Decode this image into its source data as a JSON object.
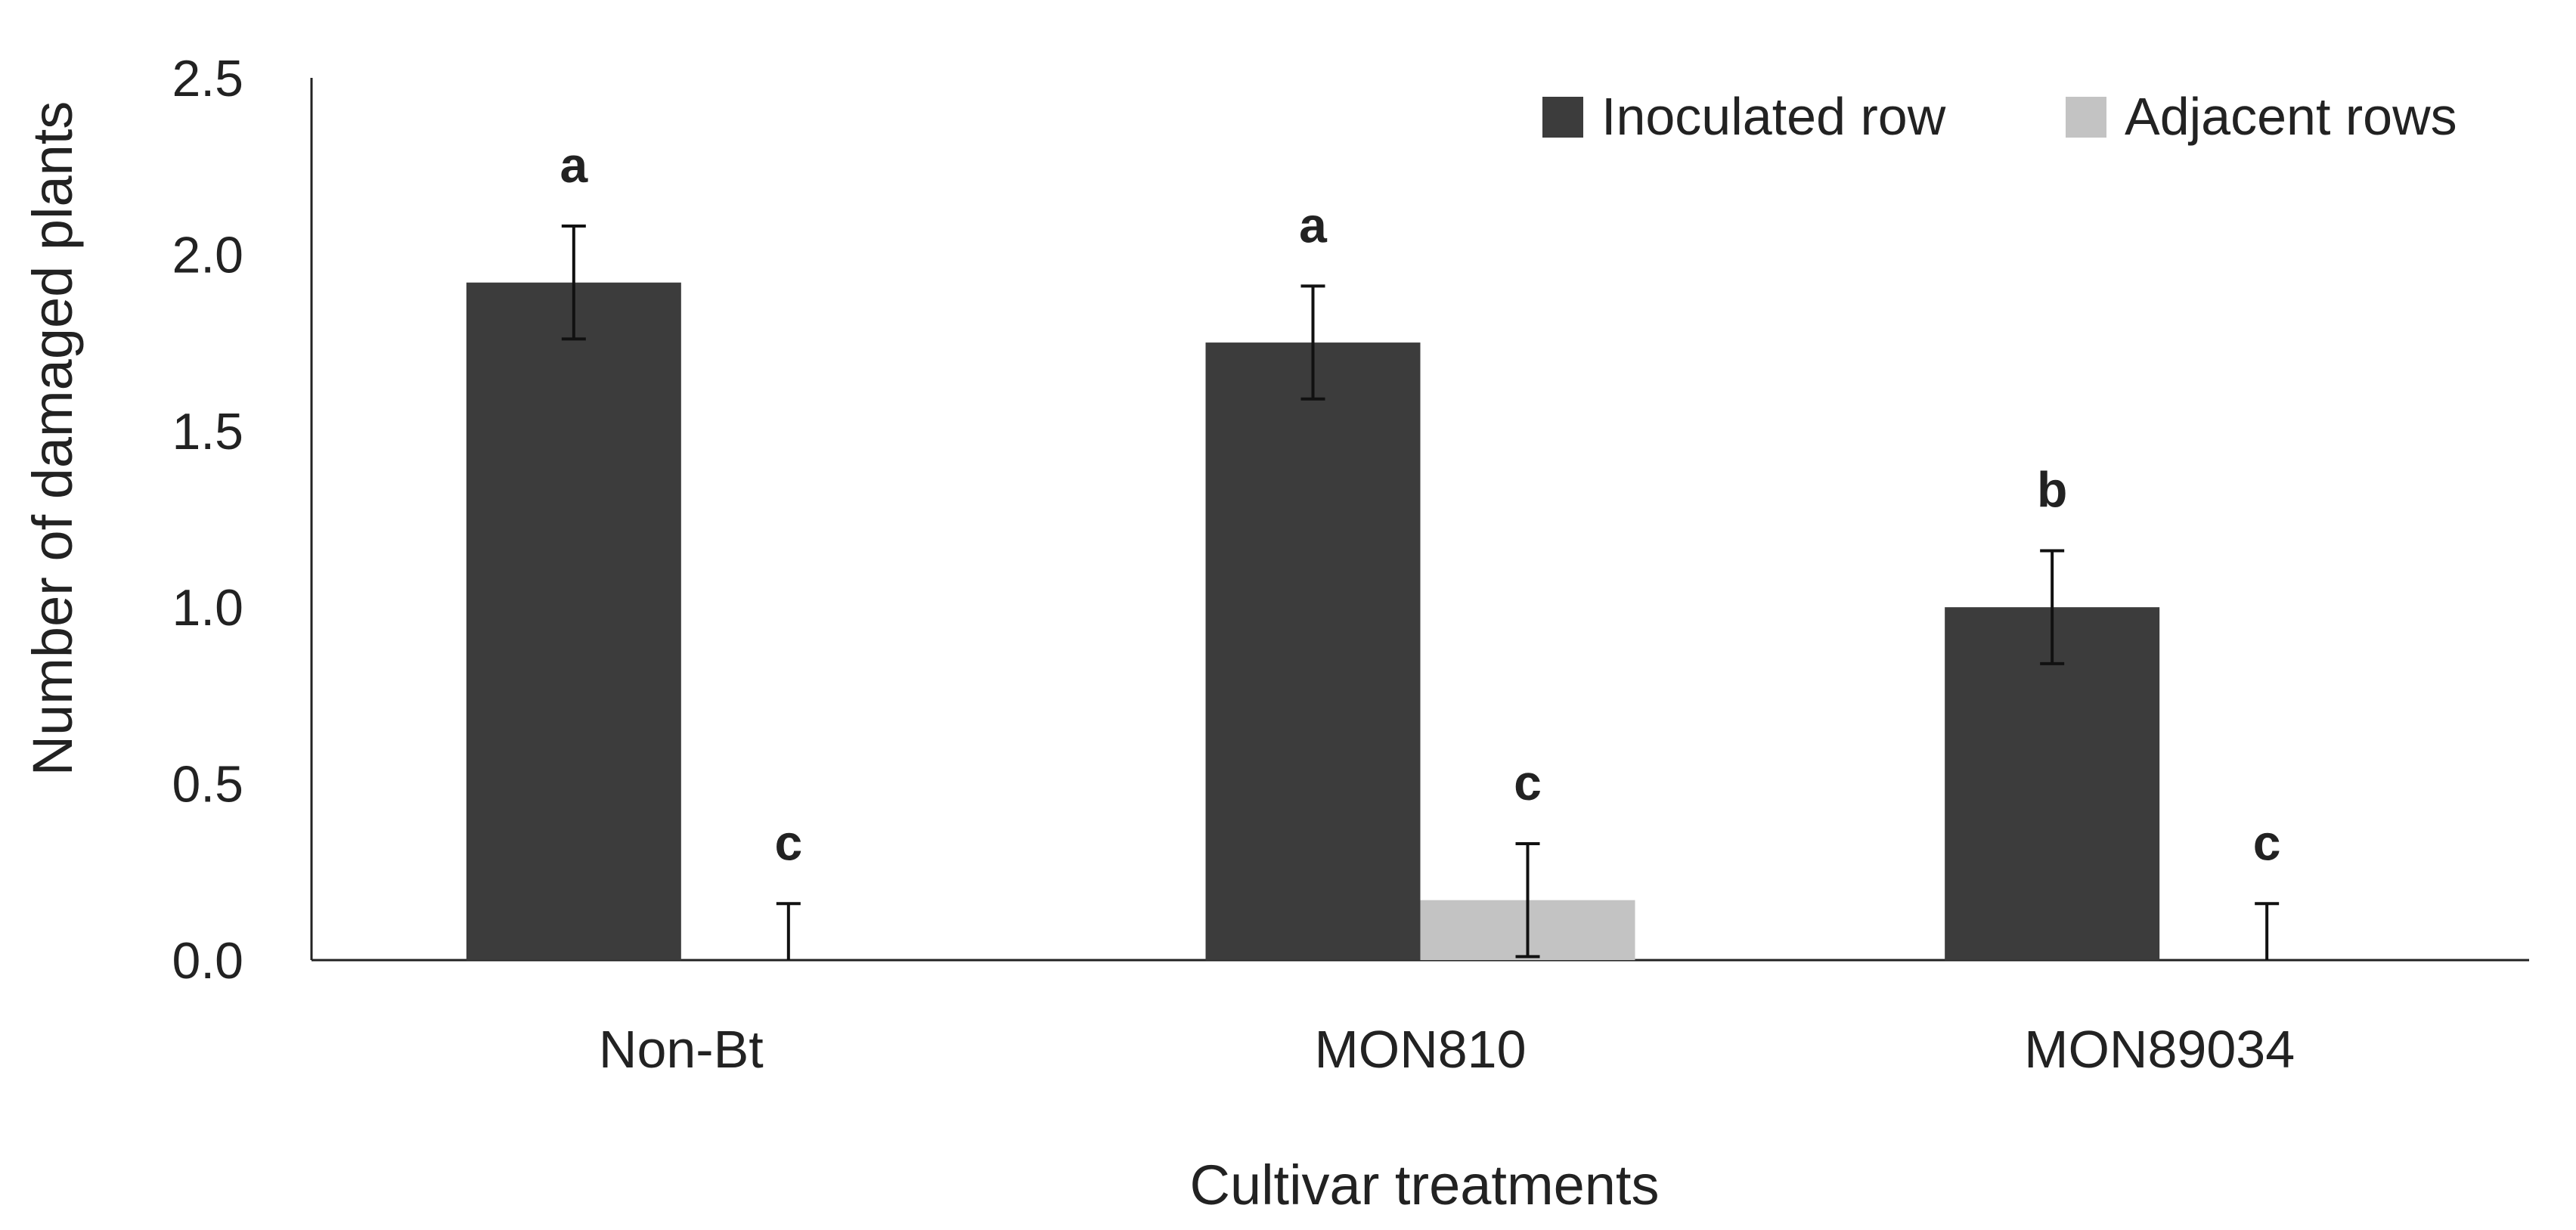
{
  "chart_data": {
    "type": "bar",
    "xlabel": "Cultivar treatments",
    "ylabel": "Number of damaged plants",
    "ylim": [
      0,
      2.5
    ],
    "yticks": [
      "0.0",
      "0.5",
      "1.0",
      "1.5",
      "2.0",
      "2.5"
    ],
    "grid": false,
    "legend_position": "top-right",
    "categories": [
      "Non-Bt",
      "MON810",
      "MON89034"
    ],
    "series": [
      {
        "name": "Inoculated row",
        "color": "#3c3c3c",
        "values": [
          1.92,
          1.75,
          1.0
        ],
        "errors": [
          0.16,
          0.16,
          0.16
        ],
        "letters": [
          "a",
          "a",
          "b"
        ]
      },
      {
        "name": "Adjacent rows",
        "color": "#c3c3c3",
        "values": [
          0.0,
          0.17,
          0.0
        ],
        "errors": [
          0.16,
          0.16,
          0.16
        ],
        "letters": [
          "c",
          "c",
          "c"
        ]
      }
    ]
  }
}
